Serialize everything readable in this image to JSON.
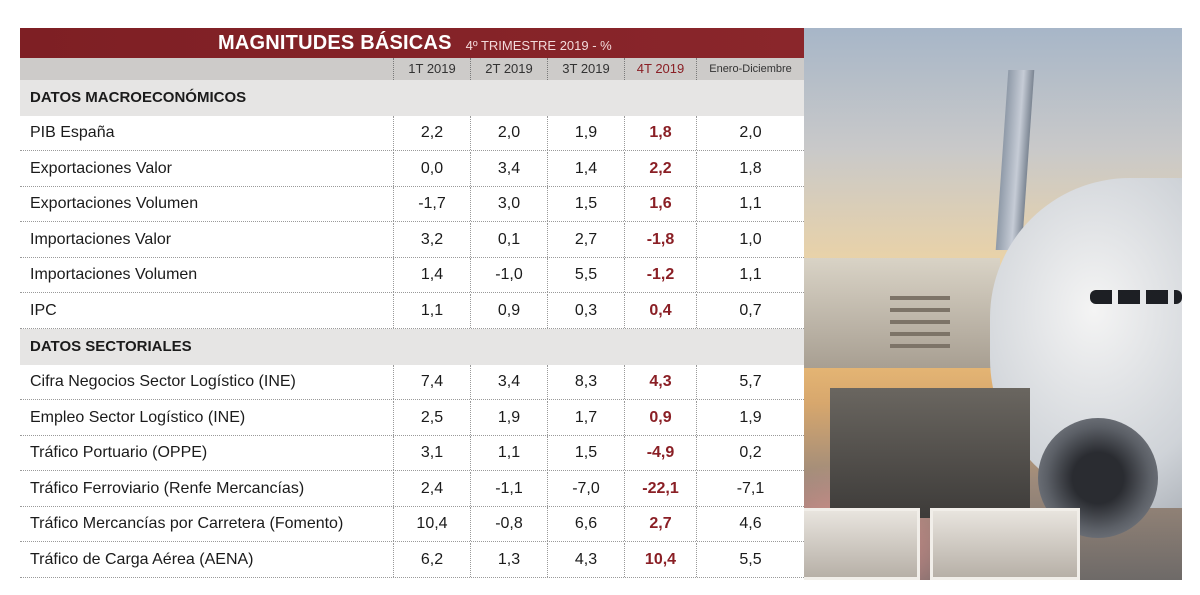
{
  "title": {
    "main": "MAGNITUDES BÁSICAS",
    "sub": "4º TRIMESTRE 2019 - %"
  },
  "columns": [
    "1T 2019",
    "2T 2019",
    "3T 2019",
    "4T 2019",
    "Enero-Diciembre"
  ],
  "highlight_color": "#8a1f25",
  "header_color": "#7e1f24",
  "sections": [
    {
      "title": "DATOS MACROECONÓMICOS",
      "rows": [
        {
          "label": "PIB España",
          "values": [
            "2,2",
            "2,0",
            "1,9",
            "1,8",
            "2,0"
          ]
        },
        {
          "label": "Exportaciones Valor",
          "values": [
            "0,0",
            "3,4",
            "1,4",
            "2,2",
            "1,8"
          ]
        },
        {
          "label": "Exportaciones Volumen",
          "values": [
            "-1,7",
            "3,0",
            "1,5",
            "1,6",
            "1,1"
          ]
        },
        {
          "label": "Importaciones Valor",
          "values": [
            "3,2",
            "0,1",
            "2,7",
            "-1,8",
            "1,0"
          ]
        },
        {
          "label": "Importaciones Volumen",
          "values": [
            "1,4",
            "-1,0",
            "5,5",
            "-1,2",
            "1,1"
          ]
        },
        {
          "label": "IPC",
          "values": [
            "1,1",
            "0,9",
            "0,3",
            "0,4",
            "0,7"
          ]
        }
      ]
    },
    {
      "title": "DATOS SECTORIALES",
      "rows": [
        {
          "label": "Cifra Negocios Sector Logístico (INE)",
          "values": [
            "7,4",
            "3,4",
            "8,3",
            "4,3",
            "5,7"
          ]
        },
        {
          "label": "Empleo Sector Logístico (INE)",
          "values": [
            "2,5",
            "1,9",
            "1,7",
            "0,9",
            "1,9"
          ]
        },
        {
          "label": "Tráfico Portuario (OPPE)",
          "values": [
            "3,1",
            "1,1",
            "1,5",
            "-4,9",
            "0,2"
          ]
        },
        {
          "label": "Tráfico Ferroviario (Renfe Mercancías)",
          "values": [
            "2,4",
            "-1,1",
            "-7,0",
            "-22,1",
            "-7,1"
          ]
        },
        {
          "label": "Tráfico Mercancías por Carretera (Fomento)",
          "values": [
            "10,4",
            "-0,8",
            "6,6",
            "2,7",
            "4,6"
          ]
        },
        {
          "label": "Tráfico de Carga Aérea (AENA)",
          "values": [
            "6,2",
            "1,3",
            "4,3",
            "10,4",
            "5,5"
          ]
        }
      ]
    }
  ]
}
